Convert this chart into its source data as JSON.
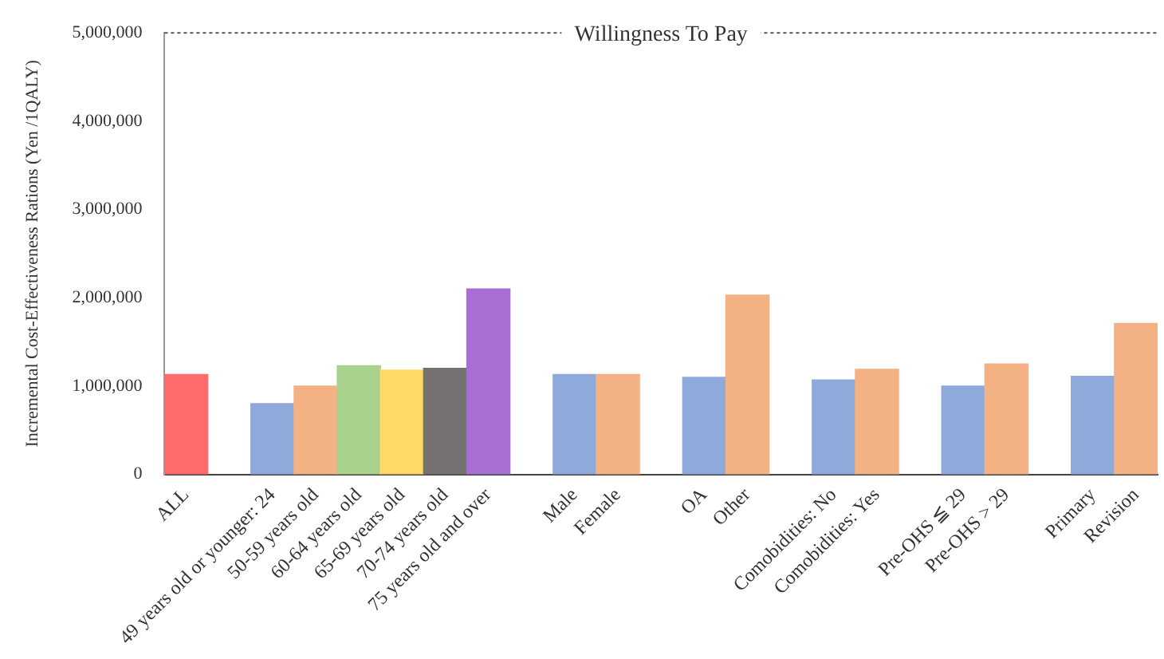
{
  "chart_data": {
    "type": "bar",
    "ylabel": "Incremental Cost-Effectiveness Rations (Yen /1QALY)",
    "categories": [
      "ALL",
      null,
      "49 years old or younger: 24",
      "50-59 years old",
      "60-64 years old",
      "65-69 years old",
      "70-74 years old",
      "75 years old and over",
      null,
      "Male",
      "Female",
      null,
      "OA",
      "Other",
      null,
      "Comobidities: No",
      "Comobidities: Yes",
      null,
      "Pre-OHS ≦ 29",
      "Pre-OHS > 29",
      null,
      "Primary",
      "Revision"
    ],
    "values": [
      1130000,
      null,
      800000,
      1000000,
      1230000,
      1180000,
      1200000,
      2100000,
      null,
      1130000,
      1130000,
      null,
      1100000,
      2030000,
      null,
      1070000,
      1190000,
      null,
      1000000,
      1250000,
      null,
      1110000,
      1710000
    ],
    "colors": [
      "#ff6b6b",
      null,
      "#8eaadb",
      "#f4b183",
      "#a9d18e",
      "#ffd966",
      "#767171",
      "#a86ed4",
      null,
      "#8eaadb",
      "#f4b183",
      null,
      "#8eaadb",
      "#f4b183",
      null,
      "#8eaadb",
      "#f4b183",
      null,
      "#8eaadb",
      "#f4b183",
      null,
      "#8eaadb",
      "#f4b183"
    ],
    "ylim": [
      0,
      5000000
    ],
    "yticks": [
      {
        "value": 0,
        "label": "0"
      },
      {
        "value": 1000000,
        "label": "1,000,000"
      },
      {
        "value": 2000000,
        "label": "2,000,000"
      },
      {
        "value": 3000000,
        "label": "3,000,000"
      },
      {
        "value": 4000000,
        "label": "4,000,000"
      },
      {
        "value": 5000000,
        "label": "5,000,000"
      }
    ],
    "ref_lines": [
      {
        "axis": "y",
        "value": 5000000,
        "label": "Willingness To Pay",
        "color": "#555555",
        "line_style": "dotted"
      }
    ],
    "grid": false,
    "legend": false
  }
}
